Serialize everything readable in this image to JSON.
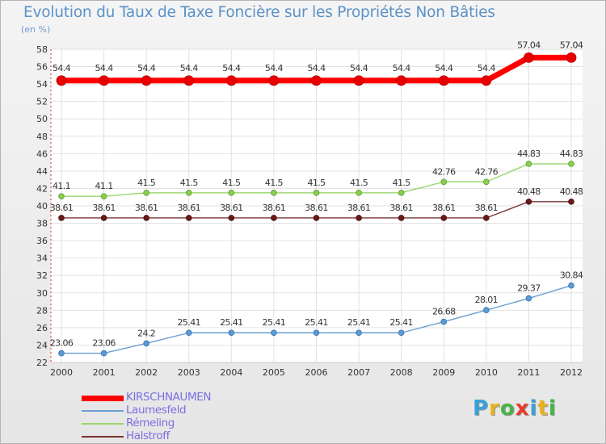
{
  "chart_data": {
    "type": "line",
    "title": "Evolution du Taux de Taxe Foncière sur les Propriétés Non Bâties",
    "ylabel": "(en %)",
    "xlabel": "",
    "x": [
      "2000",
      "2001",
      "2002",
      "2003",
      "2004",
      "2005",
      "2006",
      "2007",
      "2008",
      "2009",
      "2010",
      "2011",
      "2012"
    ],
    "ylim": [
      22,
      58
    ],
    "yticks": [
      22,
      24,
      26,
      28,
      30,
      32,
      34,
      36,
      38,
      40,
      42,
      44,
      46,
      48,
      50,
      52,
      54,
      56,
      58
    ],
    "grid": true,
    "legend_position": "bottom-left",
    "series": [
      {
        "name": "KIRSCHNAUMEN",
        "color": "#ff0000",
        "values": [
          54.4,
          54.4,
          54.4,
          54.4,
          54.4,
          54.4,
          54.4,
          54.4,
          54.4,
          54.4,
          54.4,
          57.04,
          57.04
        ],
        "labels": [
          "54.4",
          "54.4",
          "54.4",
          "54.4",
          "54.4",
          "54.4",
          "54.4",
          "54.4",
          "54.4",
          "54.4",
          "54.4",
          "57.04",
          "57.04"
        ]
      },
      {
        "name": "Laumesfeld",
        "color": "#6a9fd0",
        "values": [
          23.06,
          23.06,
          24.2,
          25.41,
          25.41,
          25.41,
          25.41,
          25.41,
          25.41,
          26.68,
          28.01,
          29.37,
          30.84
        ],
        "labels": [
          "23.06",
          "23.06",
          "24.2",
          "25.41",
          "25.41",
          "25.41",
          "25.41",
          "25.41",
          "25.41",
          "26.68",
          "28.01",
          "29.37",
          "30.84"
        ]
      },
      {
        "name": "Rémeling",
        "color": "#9ad56e",
        "values": [
          41.1,
          41.1,
          41.5,
          41.5,
          41.5,
          41.5,
          41.5,
          41.5,
          41.5,
          42.76,
          42.76,
          44.83,
          44.83
        ],
        "labels": [
          "41.1",
          "41.1",
          "41.5",
          "41.5",
          "41.5",
          "41.5",
          "41.5",
          "41.5",
          "41.5",
          "42.76",
          "42.76",
          "44.83",
          "44.83"
        ]
      },
      {
        "name": "Halstroff",
        "color": "#7a3434",
        "values": [
          38.61,
          38.61,
          38.61,
          38.61,
          38.61,
          38.61,
          38.61,
          38.61,
          38.61,
          38.61,
          38.61,
          40.48,
          40.48
        ],
        "labels": [
          "38.61",
          "38.61",
          "38.61",
          "38.61",
          "38.61",
          "38.61",
          "38.61",
          "38.61",
          "38.61",
          "38.61",
          "38.61",
          "40.48",
          "40.48"
        ]
      }
    ]
  },
  "legend": {
    "items": [
      {
        "label": "KIRSCHNAUMEN",
        "color": "#ff0000",
        "text_color": "#7b6ee0"
      },
      {
        "label": "Laumesfeld",
        "color": "#6a9fd0",
        "text_color": "#7b6ee0"
      },
      {
        "label": "Rémeling",
        "color": "#9ad56e",
        "text_color": "#7b6ee0"
      },
      {
        "label": "Halstroff",
        "color": "#7a3434",
        "text_color": "#7b6ee0"
      }
    ]
  },
  "brand": {
    "letters": [
      "P",
      "r",
      "o",
      "x",
      "i",
      "t",
      "i"
    ],
    "colors": [
      "#3aa0d8",
      "#e8b41c",
      "#46b446",
      "#e83c2c",
      "#3aa0d8",
      "#e8b41c",
      "#46b446"
    ]
  }
}
